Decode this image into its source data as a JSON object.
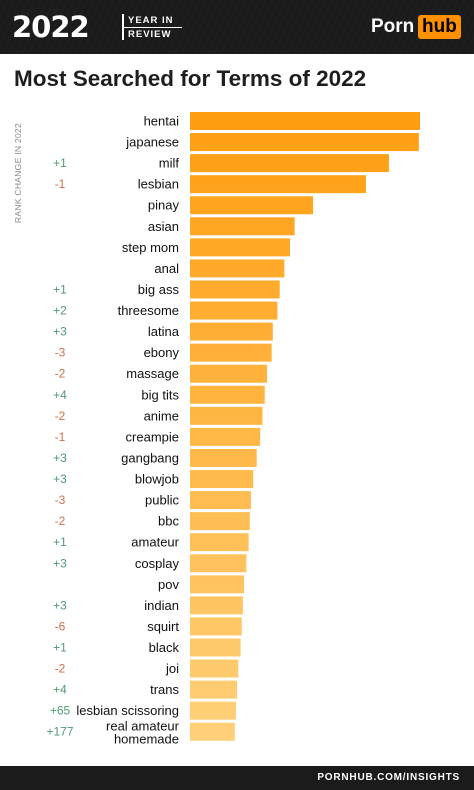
{
  "header": {
    "year": "2022",
    "badge_line1": "YEAR IN",
    "badge_line2": "REVIEW",
    "logo_part1": "Porn",
    "logo_part2": "hub"
  },
  "colors": {
    "bar_top": "#ff9d0f",
    "bar_bottom": "#ffd07a",
    "rank_up": "#4e9a72",
    "rank_down": "#d0704a",
    "header_bg": "#1b1b1b",
    "brand": "#ff9000"
  },
  "footer": {
    "text": "PORNHUB.COM/INSIGHTS"
  },
  "chart_data": {
    "type": "bar",
    "orientation": "horizontal",
    "title": "Most Searched for Terms of 2022",
    "rank_change_label": "RANK CHANGE IN 2022",
    "grid": false,
    "categories": [
      "hentai",
      "japanese",
      "milf",
      "lesbian",
      "pinay",
      "asian",
      "step mom",
      "anal",
      "big ass",
      "threesome",
      "latina",
      "ebony",
      "massage",
      "big tits",
      "anime",
      "creampie",
      "gangbang",
      "blowjob",
      "public",
      "bbc",
      "amateur",
      "cosplay",
      "pov",
      "indian",
      "squirt",
      "black",
      "joi",
      "trans",
      "lesbian scissoring",
      "real amateur homemade"
    ],
    "rank_change": [
      "",
      "",
      "+1",
      "-1",
      "",
      "",
      "",
      "",
      "+1",
      "+2",
      "+3",
      "-3",
      "-2",
      "+4",
      "-2",
      "-1",
      "+3",
      "+3",
      "-3",
      "-2",
      "+1",
      "+3",
      "",
      "+3",
      "-6",
      "+1",
      "-2",
      "+4",
      "+65",
      "+177"
    ],
    "values": [
      100,
      99.5,
      86.5,
      76.5,
      53.5,
      45.5,
      43.5,
      41,
      39,
      38,
      36,
      35.5,
      33.5,
      32.5,
      31.5,
      30.5,
      29,
      27.5,
      26.5,
      26,
      25.5,
      24.5,
      23.5,
      23,
      22.5,
      22,
      21,
      20.5,
      20,
      19.5
    ]
  }
}
